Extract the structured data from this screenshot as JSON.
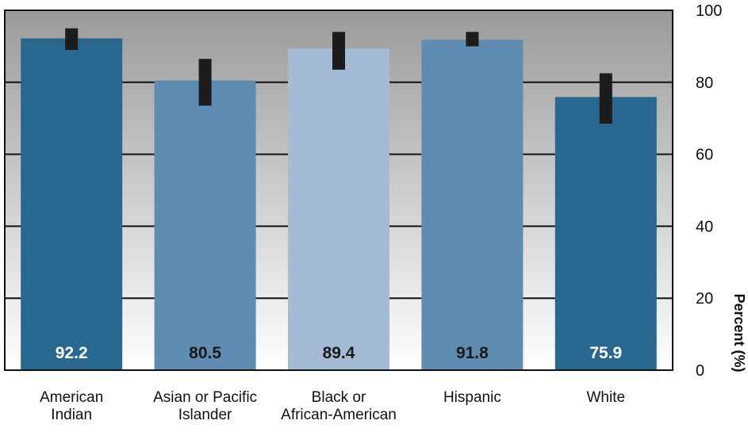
{
  "chart_data": {
    "type": "bar",
    "categories": [
      [
        "American",
        "Indian"
      ],
      [
        "Asian or Pacific",
        "Islander"
      ],
      [
        "Black or",
        "African-American"
      ],
      [
        "Hispanic"
      ],
      [
        "White"
      ]
    ],
    "values": [
      92.2,
      80.5,
      89.4,
      91.8,
      75.9
    ],
    "value_labels": [
      "92.2",
      "80.5",
      "89.4",
      "91.8",
      "75.9"
    ],
    "error_bars": [
      [
        89,
        95
      ],
      [
        73.5,
        86.5
      ],
      [
        83.5,
        94
      ],
      [
        90,
        94
      ],
      [
        68.5,
        82.5
      ]
    ],
    "bar_colors": [
      "#28688e",
      "#5f8cb1",
      "#a4bbd6",
      "#5f8cb1",
      "#28688e"
    ],
    "value_label_colors": [
      "#ffffff",
      "#1a1a1a",
      "#1a1a1a",
      "#1a1a1a",
      "#ffffff"
    ],
    "y_ticks": [
      0,
      20,
      40,
      60,
      80,
      100
    ],
    "ylim": [
      0,
      100
    ],
    "ylabel": "Percent (%)",
    "grid": true,
    "y_axis_side": "right",
    "background_gradient": [
      "#9a9a9a",
      "#ffffff"
    ]
  }
}
